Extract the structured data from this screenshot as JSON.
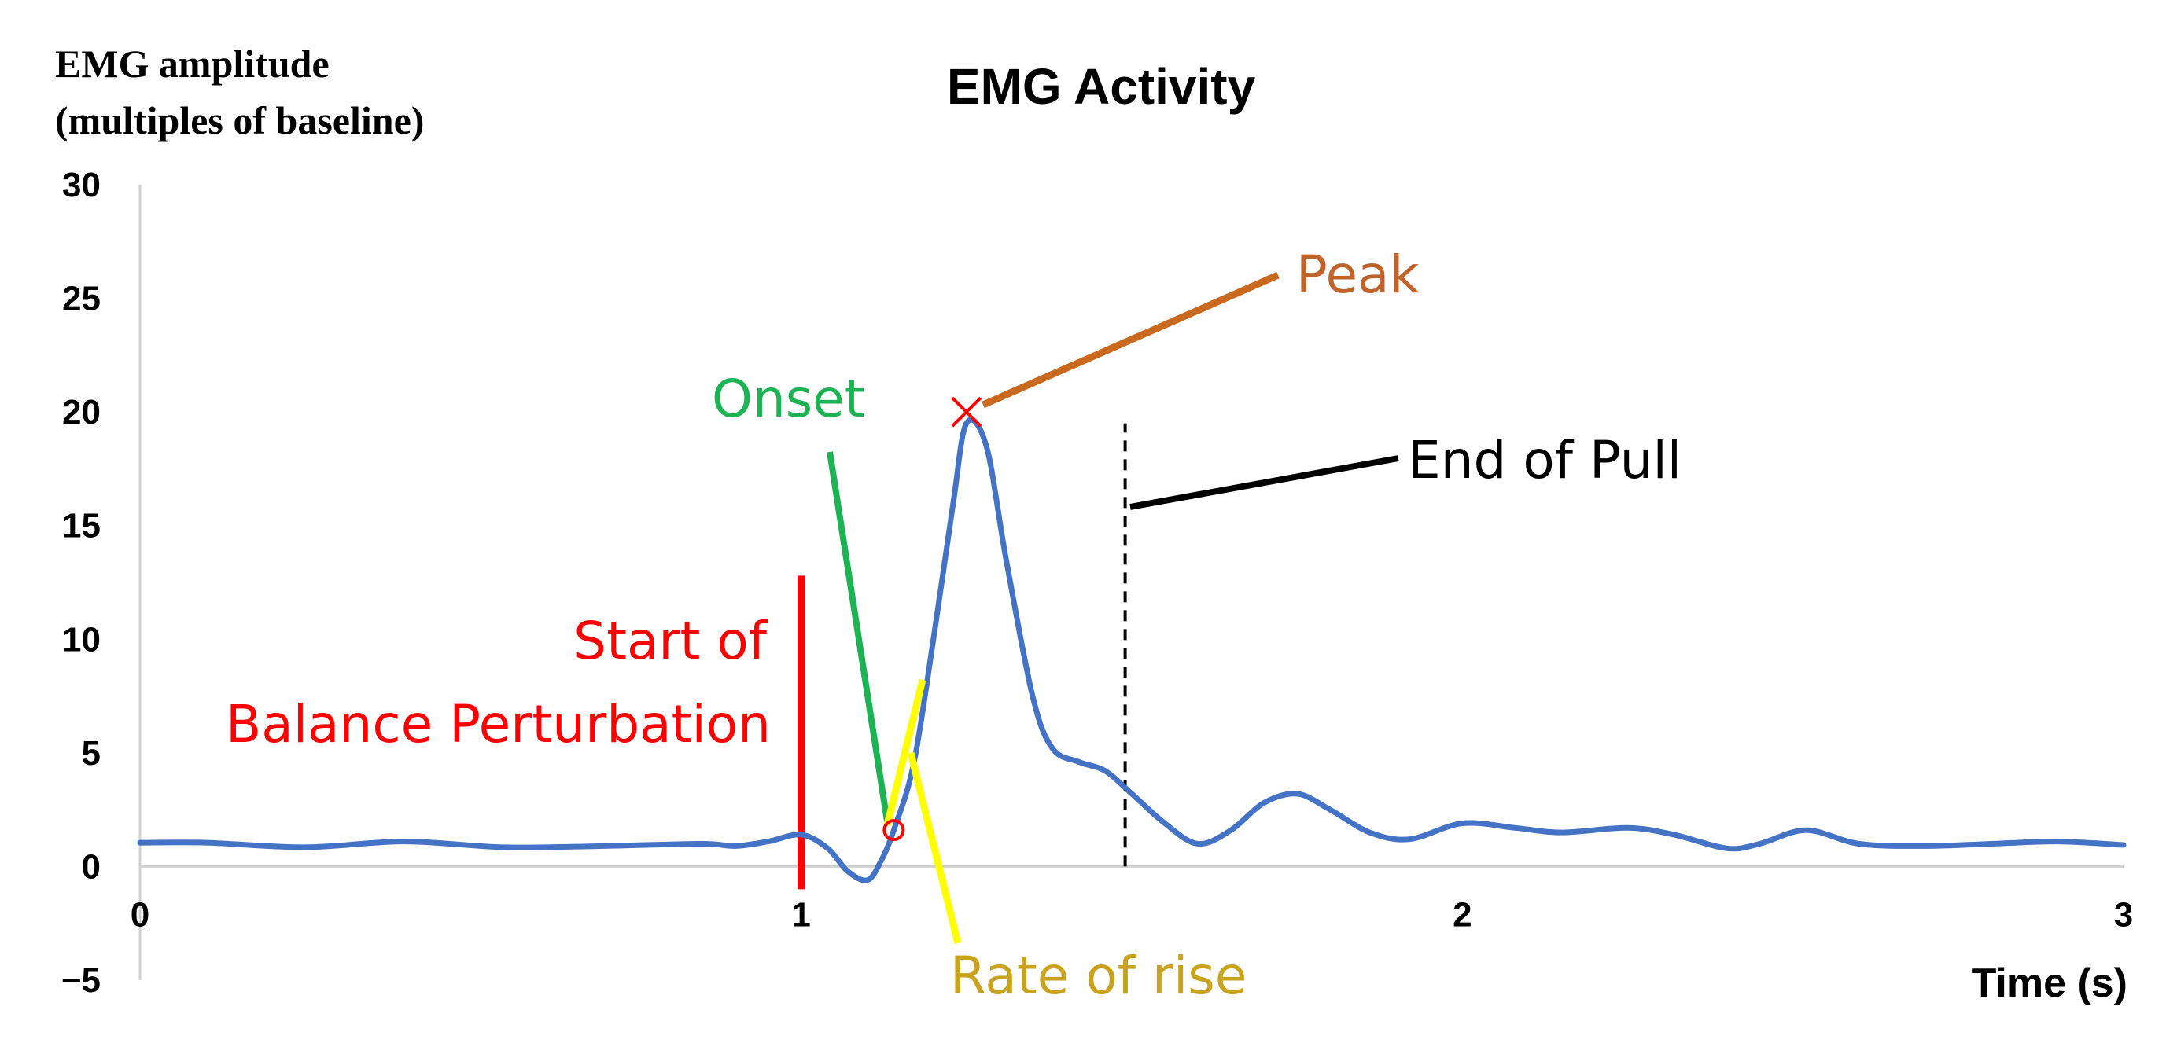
{
  "chart_data": {
    "type": "line",
    "title": "EMG Activity",
    "ylabel_line1": "EMG amplitude",
    "ylabel_line2": "(multiples  of baseline)",
    "xlabel": "Time (s)",
    "xlim": [
      0,
      3
    ],
    "ylim": [
      -5,
      30
    ],
    "x_ticks": [
      0,
      1,
      2,
      3
    ],
    "y_ticks": [
      30,
      25,
      20,
      15,
      10,
      5,
      0,
      -5
    ],
    "series": [
      {
        "name": "EMG",
        "color": "#4472C4",
        "points": [
          [
            0,
            1.05
          ],
          [
            0.1,
            1.05
          ],
          [
            0.25,
            0.85
          ],
          [
            0.4,
            1.1
          ],
          [
            0.55,
            0.85
          ],
          [
            0.7,
            0.9
          ],
          [
            0.85,
            1.0
          ],
          [
            0.9,
            0.9
          ],
          [
            0.95,
            1.1
          ],
          [
            1.0,
            1.4
          ],
          [
            1.04,
            0.8
          ],
          [
            1.07,
            -0.2
          ],
          [
            1.1,
            -0.6
          ],
          [
            1.12,
            0.2
          ],
          [
            1.14,
            1.6
          ],
          [
            1.17,
            4.5
          ],
          [
            1.2,
            10.0
          ],
          [
            1.23,
            16.0
          ],
          [
            1.25,
            19.5
          ],
          [
            1.28,
            18.5
          ],
          [
            1.31,
            13.5
          ],
          [
            1.35,
            7.5
          ],
          [
            1.38,
            5.2
          ],
          [
            1.42,
            4.6
          ],
          [
            1.46,
            4.2
          ],
          [
            1.5,
            3.2
          ],
          [
            1.55,
            1.9
          ],
          [
            1.6,
            1.0
          ],
          [
            1.65,
            1.6
          ],
          [
            1.7,
            2.8
          ],
          [
            1.75,
            3.2
          ],
          [
            1.8,
            2.5
          ],
          [
            1.86,
            1.5
          ],
          [
            1.92,
            1.2
          ],
          [
            2.0,
            1.9
          ],
          [
            2.08,
            1.7
          ],
          [
            2.15,
            1.5
          ],
          [
            2.25,
            1.7
          ],
          [
            2.32,
            1.4
          ],
          [
            2.4,
            0.8
          ],
          [
            2.45,
            1.0
          ],
          [
            2.52,
            1.6
          ],
          [
            2.6,
            1.0
          ],
          [
            2.7,
            0.9
          ],
          [
            2.8,
            1.0
          ],
          [
            2.9,
            1.1
          ],
          [
            3.0,
            0.95
          ]
        ]
      }
    ],
    "markers": {
      "onset": {
        "x": 1.14,
        "y": 1.6,
        "symbol": "circle",
        "color": "#FF0000"
      },
      "peak": {
        "x": 1.25,
        "y": 20.0,
        "symbol": "x",
        "color": "#FF0000"
      }
    },
    "reference_lines": {
      "start_of_perturbation": {
        "x": 1.0,
        "y_from": -1.0,
        "y_to": 12.8,
        "color": "#FF0000"
      },
      "end_of_pull": {
        "x": 1.49,
        "y_from": 0.0,
        "y_to": 19.5,
        "color": "#000000",
        "style": "dashed"
      }
    },
    "annotations": [
      {
        "key": "peak",
        "text": "Peak",
        "color": "#C0632A"
      },
      {
        "key": "onset",
        "text": "Onset",
        "color": "#1DB254"
      },
      {
        "key": "end_of_pull",
        "text": "End of Pull",
        "color": "#000000"
      },
      {
        "key": "start_line1",
        "text": "Start of",
        "color": "#FF0000"
      },
      {
        "key": "start_line2",
        "text": "Balance Perturbation",
        "color": "#FF0000"
      },
      {
        "key": "rate_of_rise",
        "text": "Rate of rise",
        "color": "#C9A21E"
      }
    ],
    "leader_colors": {
      "peak": "#C9681F",
      "onset": "#1DB254",
      "end_of_pull": "#000000",
      "rate_of_rise": "#FFFF00"
    }
  }
}
